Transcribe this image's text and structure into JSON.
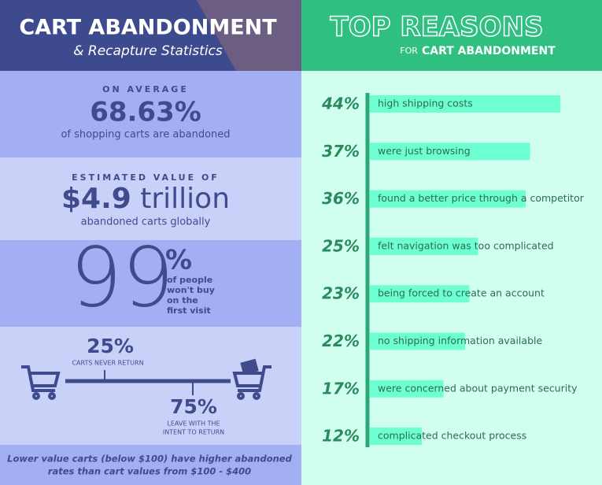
{
  "header": {
    "title": "CART ABANDONMENT",
    "subtitle": "& Recapture Statistics"
  },
  "stats": [
    {
      "lead": "ON AVERAGE",
      "figure": "68.63%",
      "caption": "of shopping carts are abandoned"
    },
    {
      "lead": "ESTIMATED VALUE OF",
      "figure": "$4.9",
      "figure_unit": "trillion",
      "caption": "abandoned carts globally"
    },
    {
      "figure": "99",
      "figure_unit": "%",
      "caption_lines": [
        "of people",
        "won't buy",
        "on the",
        "first visit"
      ]
    }
  ],
  "split": {
    "never": {
      "figure": "25%",
      "caption": "CARTS NEVER RETURN"
    },
    "later": {
      "figure": "75%",
      "caption_lines": [
        "LEAVE WITH THE",
        "INTENT TO RETURN"
      ]
    }
  },
  "footnote_lines": [
    "Lower value carts (below $100) have higher abandoned",
    "rates than cart values from $100 - $400"
  ],
  "chart_data": {
    "type": "bar",
    "orientation": "horizontal",
    "title": "TOP REASONS",
    "subtitle_lead": "FOR",
    "subtitle": "CART ABANDONMENT",
    "categories": [
      "high shipping costs",
      "were just browsing",
      "found a better price through a competitor",
      "felt navigation was too complicated",
      "being forced to create an account",
      "no shipping information available",
      "were concerned about payment security",
      "complicated checkout process"
    ],
    "values": [
      44,
      37,
      36,
      25,
      23,
      22,
      17,
      12
    ],
    "value_labels": [
      "44%",
      "37%",
      "36%",
      "25%",
      "23%",
      "22%",
      "17%",
      "12%"
    ],
    "color": "#6dffd2"
  }
}
